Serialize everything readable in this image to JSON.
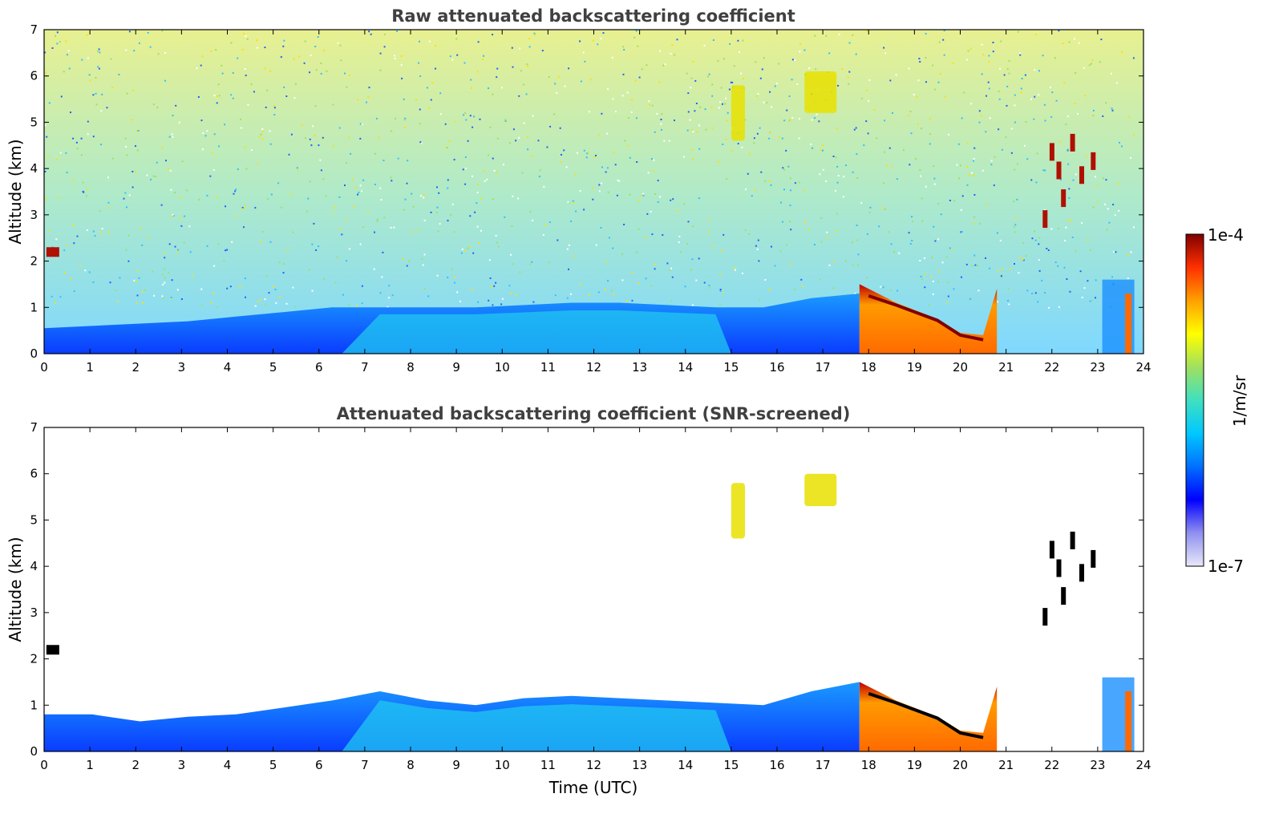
{
  "chart_data": [
    {
      "type": "heatmap",
      "title": "Raw attenuated backscattering coefficient",
      "xlabel": "",
      "ylabel": "Altitude (km)",
      "xlim": [
        0,
        24
      ],
      "ylim": [
        0,
        7
      ],
      "xticks": [
        "0",
        "1",
        "2",
        "3",
        "4",
        "5",
        "6",
        "7",
        "8",
        "9",
        "10",
        "11",
        "12",
        "13",
        "14",
        "15",
        "16",
        "17",
        "18",
        "19",
        "20",
        "21",
        "22",
        "23",
        "24"
      ],
      "yticks": [
        "0",
        "1",
        "2",
        "3",
        "4",
        "5",
        "6",
        "7"
      ],
      "screened": false,
      "features": [
        {
          "name": "boundary layer aerosol",
          "t_start": 0,
          "t_end": 17.8,
          "top_km": [
            0.55,
            0.6,
            0.65,
            0.7,
            0.8,
            0.9,
            1.0,
            1.0,
            1.0,
            1.0,
            1.05,
            1.1,
            1.1,
            1.05,
            1.0,
            1.0,
            1.2,
            1.3
          ]
        },
        {
          "name": "thick cloud layer",
          "t_start": 17.8,
          "t_end": 20.8,
          "base_km": 0,
          "top_km": 1.5
        },
        {
          "name": "mid-level cloud",
          "t_start": 15.0,
          "t_end": 15.3,
          "base_km": 4.6,
          "top_km": 5.8
        },
        {
          "name": "mid-level cloud",
          "t_start": 16.6,
          "t_end": 17.3,
          "base_km": 5.2,
          "top_km": 6.1
        },
        {
          "name": "elevated cloud patches",
          "t_start": 21.9,
          "t_end": 22.9,
          "base_km": 2.6,
          "top_km": 4.8
        }
      ]
    },
    {
      "type": "heatmap",
      "title": "Attenuated backscattering coefficient (SNR-screened)",
      "xlabel": "Time (UTC)",
      "ylabel": "Altitude (km)",
      "xlim": [
        0,
        24
      ],
      "ylim": [
        0,
        7
      ],
      "xticks": [
        "0",
        "1",
        "2",
        "3",
        "4",
        "5",
        "6",
        "7",
        "8",
        "9",
        "10",
        "11",
        "12",
        "13",
        "14",
        "15",
        "16",
        "17",
        "18",
        "19",
        "20",
        "21",
        "22",
        "23",
        "24"
      ],
      "yticks": [
        "0",
        "1",
        "2",
        "3",
        "4",
        "5",
        "6",
        "7"
      ],
      "screened": true,
      "features": [
        {
          "name": "boundary layer aerosol",
          "t_start": 0,
          "t_end": 17.8,
          "top_km": [
            0.8,
            0.8,
            0.65,
            0.75,
            0.8,
            0.95,
            1.1,
            1.3,
            1.1,
            1.0,
            1.15,
            1.2,
            1.15,
            1.1,
            1.05,
            1.0,
            1.3,
            1.5
          ]
        },
        {
          "name": "thick cloud layer",
          "t_start": 17.8,
          "t_end": 20.8,
          "base_km": 0,
          "top_km": 1.5
        },
        {
          "name": "mid-level cloud",
          "t_start": 15.0,
          "t_end": 15.3,
          "base_km": 4.6,
          "top_km": 5.8
        },
        {
          "name": "mid-level cloud",
          "t_start": 16.6,
          "t_end": 17.3,
          "base_km": 5.3,
          "top_km": 6.0
        },
        {
          "name": "elevated cloud patches",
          "t_start": 21.9,
          "t_end": 22.9,
          "base_km": 2.7,
          "top_km": 4.8
        }
      ]
    }
  ],
  "colorbar": {
    "label": "1/m/sr",
    "max_label": "1e-4",
    "min_label": "1e-7",
    "colors": [
      "#e8e8f8",
      "#9090f0",
      "#0000ff",
      "#0070ff",
      "#00c8ff",
      "#40e0c0",
      "#a0e060",
      "#ffff00",
      "#ffa000",
      "#ff3000",
      "#800000"
    ]
  }
}
